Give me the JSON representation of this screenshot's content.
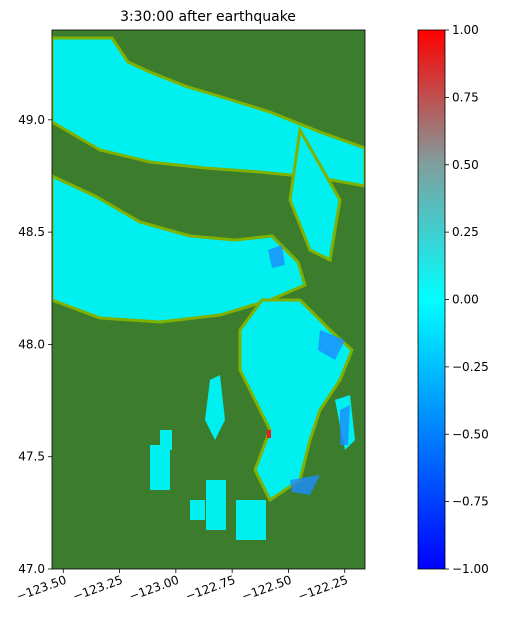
{
  "chart_data": {
    "type": "map",
    "title": "3:30:00 after earthquake",
    "xlim": [
      -123.55,
      -122.16
    ],
    "ylim": [
      47.0,
      49.4
    ],
    "xticks": [
      {
        "value": -123.5,
        "label": "−123.50"
      },
      {
        "value": -123.25,
        "label": "−123.25"
      },
      {
        "value": -123.0,
        "label": "−123.00"
      },
      {
        "value": -122.75,
        "label": "−122.75"
      },
      {
        "value": -122.5,
        "label": "−122.50"
      },
      {
        "value": -122.25,
        "label": "−122.25"
      }
    ],
    "yticks": [
      {
        "value": 47.0,
        "label": "47.0"
      },
      47.5,
      {
        "value": 48.0,
        "label": "48.0"
      },
      48.5,
      {
        "value": 49.0,
        "label": "49.0"
      }
    ],
    "colorbar": {
      "lim": [
        -1,
        1
      ],
      "ticks": [
        {
          "value": -1,
          "label": "−1.00"
        },
        {
          "value": -0.75,
          "label": "−0.75"
        },
        {
          "value": -0.5,
          "label": "−0.50"
        },
        {
          "value": -0.25,
          "label": "−0.25"
        },
        {
          "value": 0,
          "label": "0.00"
        },
        {
          "value": 0.25,
          "label": "0.25"
        },
        {
          "value": 0.5,
          "label": "0.50"
        },
        {
          "value": 0.75,
          "label": "0.75"
        },
        {
          "value": 1,
          "label": "1.00"
        }
      ],
      "colors": [
        "#0000ff",
        "#0080ff",
        "#00ffff",
        "#7f9f9f",
        "#ff0000"
      ]
    }
  }
}
